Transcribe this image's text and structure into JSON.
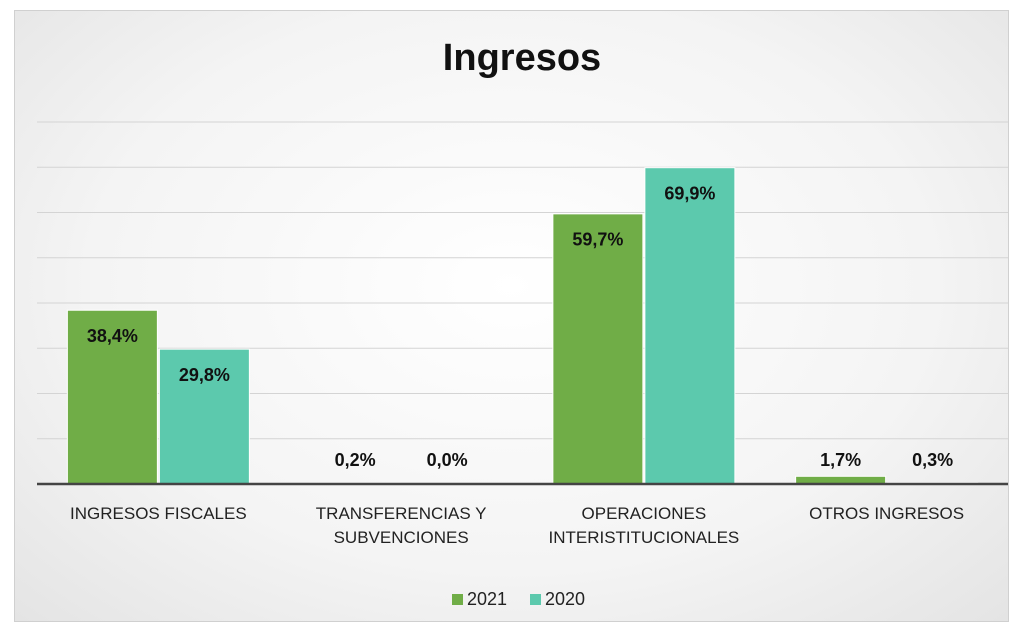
{
  "chart_data": {
    "type": "bar",
    "title": "Ingresos",
    "categories": [
      "INGRESOS FISCALES",
      "TRANSFERENCIAS Y SUBVENCIONES",
      "OPERACIONES INTERISTITUCIONALES",
      "OTROS INGRESOS"
    ],
    "series": [
      {
        "name": "2021",
        "color": "#70ad47",
        "values": [
          38.4,
          0.2,
          59.7,
          1.7
        ],
        "value_labels": [
          "38,4%",
          "0,2%",
          "59,7%",
          "1,7%"
        ]
      },
      {
        "name": "2020",
        "color": "#5cc9ad",
        "values": [
          29.8,
          0.0,
          69.9,
          0.3
        ],
        "value_labels": [
          "29,8%",
          "0,0%",
          "69,9%",
          "0,3%"
        ]
      }
    ],
    "ylim": [
      0,
      80
    ],
    "yticks": [
      0,
      10,
      20,
      30,
      40,
      50,
      60,
      70,
      80
    ],
    "grid": true,
    "legend": "bottom"
  }
}
